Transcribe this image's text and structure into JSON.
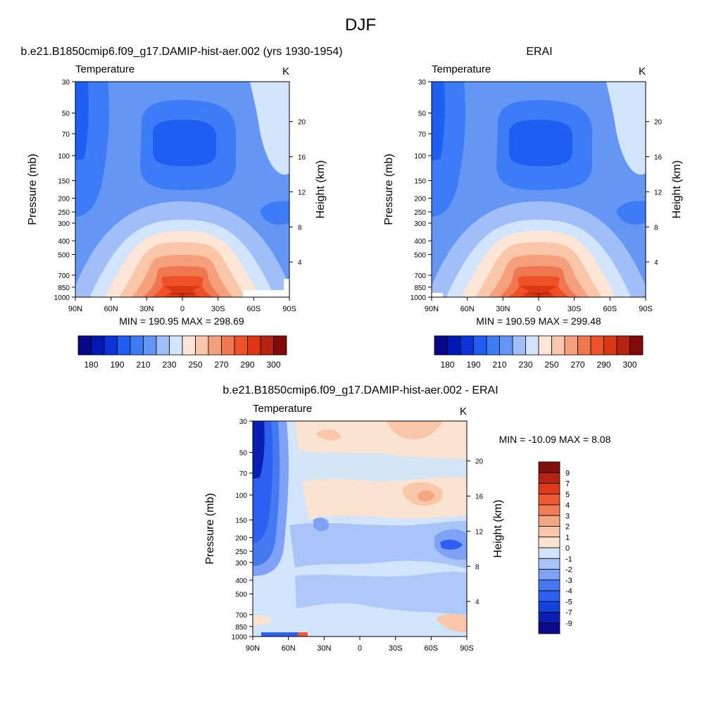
{
  "figure": {
    "title": "DJF"
  },
  "colors": {
    "abs_palette": [
      "#08088a",
      "#0019b4",
      "#0a32d8",
      "#1e5ff2",
      "#3d7cf5",
      "#6496f5",
      "#a0bef8",
      "#d2e4fa",
      "#fde6d6",
      "#f9c6aa",
      "#f5a07d",
      "#f07850",
      "#ee5028",
      "#dc3714",
      "#b42410",
      "#820a08"
    ],
    "diff_palette": [
      "#0a0a8a",
      "#0a1eb4",
      "#1440dc",
      "#2d5ff0",
      "#4678f2",
      "#7ea2f5",
      "#a8c4f8",
      "#d2e4fa",
      "#fbe3d2",
      "#f8c6a8",
      "#f4a683",
      "#f07d55",
      "#ee5a32",
      "#dc3a18",
      "#b42412",
      "#82100a"
    ]
  },
  "panels": [
    {
      "id": "model",
      "title": "b.e21.B1850cmip6.f09_g17.DAMIP-hist-aer.002 (yrs 1930-1954)",
      "var_label": "Temperature",
      "units": "K",
      "stats": "MIN = 190.95  MAX = 298.69"
    },
    {
      "id": "obs",
      "title": "ERAI",
      "var_label": "Temperature",
      "units": "K",
      "stats": "MIN = 190.59  MAX = 299.48"
    },
    {
      "id": "diff",
      "title": "b.e21.B1850cmip6.f09_g17.DAMIP-hist-aer.002 - ERAI",
      "var_label": "Temperature",
      "units": "K",
      "stats": "MIN = -10.09  MAX =   8.08"
    }
  ],
  "chart_data": [
    {
      "type": "heatmap",
      "title": "b.e21.B1850cmip6.f09_g17.DAMIP-hist-aer.002 (yrs 1930-1954)",
      "ylabel": "Pressure (mb)",
      "ylabel_right": "Height (km)",
      "x_ticks": [
        "90N",
        "60N",
        "30N",
        "0",
        "30S",
        "60S",
        "90S"
      ],
      "y_ticks": [
        30,
        50,
        70,
        100,
        150,
        200,
        250,
        300,
        400,
        500,
        700,
        850,
        1000
      ],
      "y2_ticks": [
        20,
        16,
        12,
        8,
        4
      ],
      "ylim": [
        30,
        1000
      ],
      "y_scale": "log",
      "colorbar_labels": [
        "180",
        "190",
        "210",
        "230",
        "250",
        "270",
        "290",
        "300"
      ],
      "min": 190.95,
      "max": 298.69
    },
    {
      "type": "heatmap",
      "title": "ERAI",
      "ylabel": "Pressure (mb)",
      "ylabel_right": "Height (km)",
      "x_ticks": [
        "90N",
        "60N",
        "30N",
        "0",
        "30S",
        "60S",
        "90S"
      ],
      "y_ticks": [
        30,
        50,
        70,
        100,
        150,
        200,
        250,
        300,
        400,
        500,
        700,
        850,
        1000
      ],
      "y2_ticks": [
        20,
        16,
        12,
        8,
        4
      ],
      "ylim": [
        30,
        1000
      ],
      "y_scale": "log",
      "colorbar_labels": [
        "180",
        "190",
        "210",
        "230",
        "250",
        "270",
        "290",
        "300"
      ],
      "min": 190.59,
      "max": 299.48
    },
    {
      "type": "heatmap",
      "title": "b.e21.B1850cmip6.f09_g17.DAMIP-hist-aer.002 - ERAI",
      "ylabel": "Pressure (mb)",
      "ylabel_right": "Height (km)",
      "x_ticks": [
        "90N",
        "60N",
        "30N",
        "0",
        "30S",
        "60S",
        "90S"
      ],
      "y_ticks": [
        30,
        50,
        70,
        100,
        150,
        200,
        250,
        300,
        400,
        500,
        700,
        850,
        1000
      ],
      "y2_ticks": [
        20,
        16,
        12,
        8,
        4
      ],
      "ylim": [
        30,
        1000
      ],
      "y_scale": "log",
      "colorbar_labels": [
        "9",
        "7",
        "5",
        "4",
        "3",
        "2",
        "1",
        "0",
        "-1",
        "-2",
        "-3",
        "-4",
        "-5",
        "-7",
        "-9"
      ],
      "min": -10.09,
      "max": 8.08
    }
  ]
}
